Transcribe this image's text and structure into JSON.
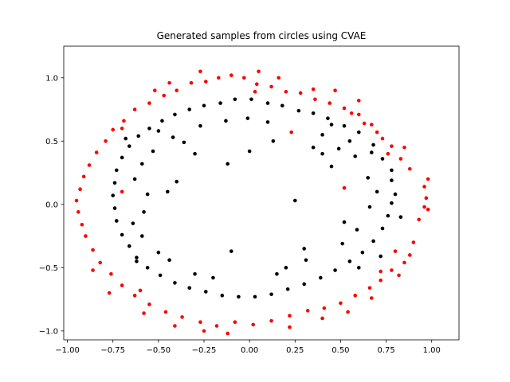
{
  "chart_data": {
    "type": "scatter",
    "title": "Generated samples from circles using CVAE",
    "xlabel": "",
    "ylabel": "",
    "xlim": [
      -1.02,
      1.15
    ],
    "ylim": [
      -1.07,
      1.25
    ],
    "x_ticks": [
      -1.0,
      -0.75,
      -0.5,
      -0.25,
      0.0,
      0.25,
      0.5,
      0.75,
      1.0
    ],
    "x_tick_labels": [
      "−1.00",
      "−0.75",
      "−0.50",
      "−0.25",
      "0.00",
      "0.25",
      "0.50",
      "0.75",
      "1.00"
    ],
    "y_ticks": [
      -1.0,
      -0.5,
      0.0,
      0.5,
      1.0
    ],
    "y_tick_labels": [
      "−1.0",
      "−0.5",
      "0.0",
      "0.5",
      "1.0"
    ],
    "grid": false,
    "legend": false,
    "series": [
      {
        "color": "#ff0000",
        "description_of_points": "outer ring, radius about 0.85-1.05",
        "points": [
          [
            0.98,
            0.2
          ],
          [
            0.96,
            0.14
          ],
          [
            0.97,
            0.05
          ],
          [
            0.98,
            -0.04
          ],
          [
            0.93,
            -0.12
          ],
          [
            0.96,
            -0.02
          ],
          [
            0.9,
            -0.3
          ],
          [
            0.88,
            -0.4
          ],
          [
            0.85,
            -0.46
          ],
          [
            0.82,
            -0.56
          ],
          [
            0.88,
            0.28
          ],
          [
            0.83,
            0.36
          ],
          [
            0.78,
            0.46
          ],
          [
            0.73,
            0.52
          ],
          [
            0.67,
            0.63
          ],
          [
            0.6,
            0.71
          ],
          [
            0.52,
            0.76
          ],
          [
            0.44,
            0.8
          ],
          [
            0.36,
            0.83
          ],
          [
            0.28,
            0.88
          ],
          [
            0.2,
            0.89
          ],
          [
            0.12,
            0.93
          ],
          [
            0.04,
            0.95
          ],
          [
            -0.03,
            1.0
          ],
          [
            -0.1,
            1.02
          ],
          [
            -0.17,
            1.0
          ],
          [
            -0.24,
            0.97
          ],
          [
            -0.32,
            0.96
          ],
          [
            -0.4,
            0.9
          ],
          [
            -0.47,
            0.86
          ],
          [
            -0.55,
            0.8
          ],
          [
            -0.63,
            0.75
          ],
          [
            -0.69,
            0.66
          ],
          [
            -0.75,
            0.59
          ],
          [
            -0.79,
            0.5
          ],
          [
            -0.84,
            0.41
          ],
          [
            -0.88,
            0.31
          ],
          [
            -0.91,
            0.22
          ],
          [
            -0.93,
            0.12
          ],
          [
            -0.95,
            0.03
          ],
          [
            -0.94,
            -0.06
          ],
          [
            -0.92,
            -0.16
          ],
          [
            -0.9,
            -0.25
          ],
          [
            -0.86,
            -0.36
          ],
          [
            -0.82,
            -0.46
          ],
          [
            -0.76,
            -0.55
          ],
          [
            -0.7,
            -0.64
          ],
          [
            -0.63,
            -0.72
          ],
          [
            -0.55,
            -0.79
          ],
          [
            -0.46,
            -0.85
          ],
          [
            -0.37,
            -0.89
          ],
          [
            -0.27,
            -0.93
          ],
          [
            -0.18,
            -0.96
          ],
          [
            -0.08,
            -0.93
          ],
          [
            0.02,
            -0.95
          ],
          [
            0.12,
            -0.92
          ],
          [
            0.22,
            -0.88
          ],
          [
            0.32,
            -0.84
          ],
          [
            0.41,
            -0.82
          ],
          [
            0.5,
            -0.78
          ],
          [
            0.58,
            -0.72
          ],
          [
            0.66,
            -0.66
          ],
          [
            0.72,
            -0.6
          ],
          [
            0.78,
            -0.52
          ],
          [
            0.76,
            0.4
          ],
          [
            0.7,
            0.57
          ],
          [
            0.63,
            0.64
          ],
          [
            -0.6,
            -0.68
          ],
          [
            -0.7,
            0.6
          ],
          [
            0.47,
            0.9
          ],
          [
            0.35,
            0.91
          ],
          [
            -0.27,
            1.05
          ],
          [
            -0.44,
            0.96
          ],
          [
            0.05,
            1.05
          ],
          [
            -0.52,
            0.9
          ],
          [
            0.16,
            1.0
          ],
          [
            0.6,
            0.82
          ],
          [
            0.85,
            0.45
          ],
          [
            0.8,
            -0.37
          ],
          [
            0.72,
            -0.53
          ],
          [
            0.67,
            -0.74
          ],
          [
            0.54,
            -0.85
          ],
          [
            0.4,
            -0.9
          ],
          [
            0.22,
            -0.97
          ],
          [
            -0.12,
            -1.02
          ],
          [
            -0.25,
            -1.0
          ],
          [
            -0.41,
            -0.96
          ],
          [
            -0.58,
            -0.86
          ],
          [
            -0.77,
            -0.7
          ],
          [
            -0.86,
            -0.52
          ],
          [
            0.03,
            0.89
          ],
          [
            0.56,
            0.72
          ],
          [
            0.23,
            0.57
          ],
          [
            0.52,
            0.13
          ],
          [
            -0.7,
            0.1
          ],
          [
            -0.73,
            -0.13
          ]
        ]
      },
      {
        "color": "#000000",
        "description_of_points": "inner ring, radius about 0.55-0.80",
        "points": [
          [
            0.83,
            -0.1
          ],
          [
            0.8,
            0.08
          ],
          [
            0.78,
            0.27
          ],
          [
            0.73,
            0.36
          ],
          [
            0.68,
            0.47
          ],
          [
            0.6,
            0.57
          ],
          [
            0.52,
            0.62
          ],
          [
            0.43,
            0.68
          ],
          [
            0.35,
            0.72
          ],
          [
            0.27,
            0.74
          ],
          [
            0.18,
            0.78
          ],
          [
            0.1,
            0.8
          ],
          [
            0.01,
            0.83
          ],
          [
            -0.08,
            0.83
          ],
          [
            -0.16,
            0.8
          ],
          [
            -0.25,
            0.78
          ],
          [
            -0.33,
            0.75
          ],
          [
            -0.41,
            0.71
          ],
          [
            -0.48,
            0.66
          ],
          [
            -0.55,
            0.6
          ],
          [
            -0.61,
            0.54
          ],
          [
            -0.66,
            0.46
          ],
          [
            -0.7,
            0.37
          ],
          [
            -0.73,
            0.27
          ],
          [
            -0.74,
            0.17
          ],
          [
            -0.75,
            0.07
          ],
          [
            -0.74,
            -0.03
          ],
          [
            -0.73,
            -0.13
          ],
          [
            -0.7,
            -0.24
          ],
          [
            -0.66,
            -0.33
          ],
          [
            -0.62,
            -0.42
          ],
          [
            -0.56,
            -0.5
          ],
          [
            -0.49,
            -0.56
          ],
          [
            -0.41,
            -0.62
          ],
          [
            -0.33,
            -0.66
          ],
          [
            -0.24,
            -0.69
          ],
          [
            -0.15,
            -0.72
          ],
          [
            -0.06,
            -0.73
          ],
          [
            0.03,
            -0.73
          ],
          [
            0.12,
            -0.71
          ],
          [
            0.21,
            -0.67
          ],
          [
            0.3,
            -0.63
          ],
          [
            0.39,
            -0.58
          ],
          [
            0.47,
            -0.52
          ],
          [
            0.55,
            -0.45
          ],
          [
            0.62,
            -0.38
          ],
          [
            0.68,
            -0.29
          ],
          [
            0.73,
            -0.19
          ],
          [
            0.76,
            -0.09
          ],
          [
            0.78,
            0.01
          ],
          [
            0.65,
            0.21
          ],
          [
            0.58,
            0.38
          ],
          [
            0.49,
            0.44
          ],
          [
            0.4,
            0.55
          ],
          [
            -0.42,
            0.53
          ],
          [
            -0.53,
            0.42
          ],
          [
            -0.59,
            0.32
          ],
          [
            -0.63,
            0.2
          ],
          [
            -0.64,
            -0.15
          ],
          [
            -0.59,
            -0.25
          ],
          [
            -0.5,
            -0.38
          ],
          [
            -0.44,
            -0.44
          ],
          [
            -0.3,
            -0.55
          ],
          [
            -0.2,
            -0.58
          ],
          [
            0.2,
            -0.5
          ],
          [
            0.31,
            -0.44
          ],
          [
            0.51,
            -0.31
          ],
          [
            0.59,
            -0.2
          ],
          [
            0.66,
            -0.02
          ],
          [
            0.7,
            0.1
          ],
          [
            0.45,
            0.3
          ],
          [
            0.35,
            0.45
          ],
          [
            0.1,
            0.65
          ],
          [
            -0.01,
            0.68
          ],
          [
            -0.13,
            0.66
          ],
          [
            -0.27,
            0.62
          ],
          [
            -0.36,
            0.49
          ],
          [
            -0.56,
            0.08
          ],
          [
            -0.58,
            -0.06
          ],
          [
            0.52,
            -0.14
          ],
          [
            0.13,
            0.5
          ],
          [
            0.0,
            0.42
          ],
          [
            -0.12,
            0.32
          ],
          [
            0.25,
            0.03
          ],
          [
            -0.4,
            0.18
          ],
          [
            0.4,
            0.4
          ],
          [
            -0.1,
            -0.37
          ],
          [
            0.3,
            -0.35
          ],
          [
            -0.45,
            0.1
          ],
          [
            0.15,
            -0.55
          ],
          [
            0.55,
            0.5
          ],
          [
            -0.3,
            0.4
          ],
          [
            0.6,
            -0.5
          ],
          [
            -0.62,
            -0.45
          ],
          [
            0.45,
            0.63
          ],
          [
            -0.5,
            0.58
          ],
          [
            0.67,
            0.41
          ],
          [
            0.72,
            -0.41
          ],
          [
            -0.68,
            0.52
          ],
          [
            0.78,
            0.19
          ]
        ]
      }
    ]
  }
}
